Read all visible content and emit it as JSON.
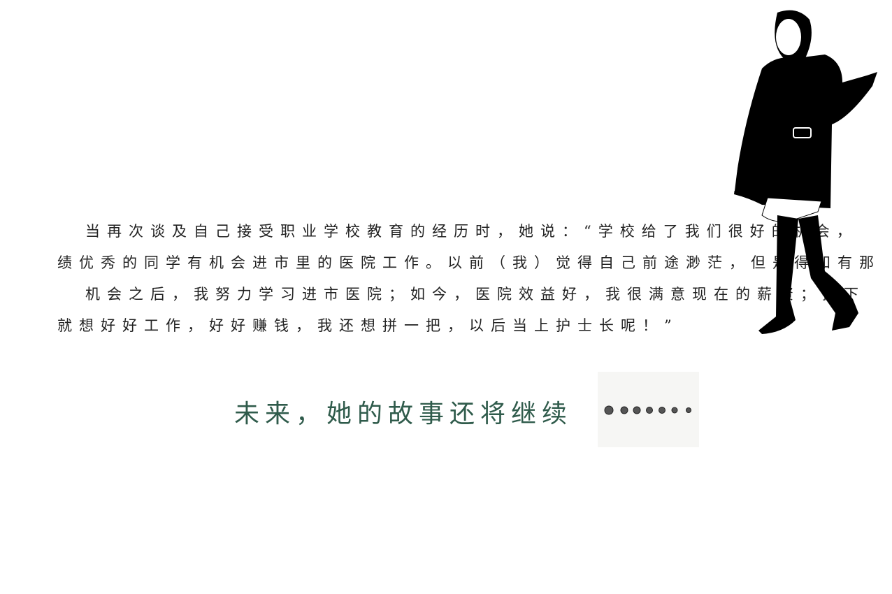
{
  "paragraph": {
    "lines": [
      "当再次谈及自己接受职业学校教育的经历时，她说：“学校给了我们很好的机会，",
      "绩优秀的同学有机会进市里的医院工作。以前（我）觉得自己前途渺茫，但是得知有那",
      "机会之后，我努力学习进市医院；如今，医院效益好，我很满意现在的薪资；接下",
      "就想好好工作，好好赚钱，我还想拼一把，以后当上护士长呢！”"
    ]
  },
  "heading": {
    "title": "未来，她的故事还将继续"
  }
}
